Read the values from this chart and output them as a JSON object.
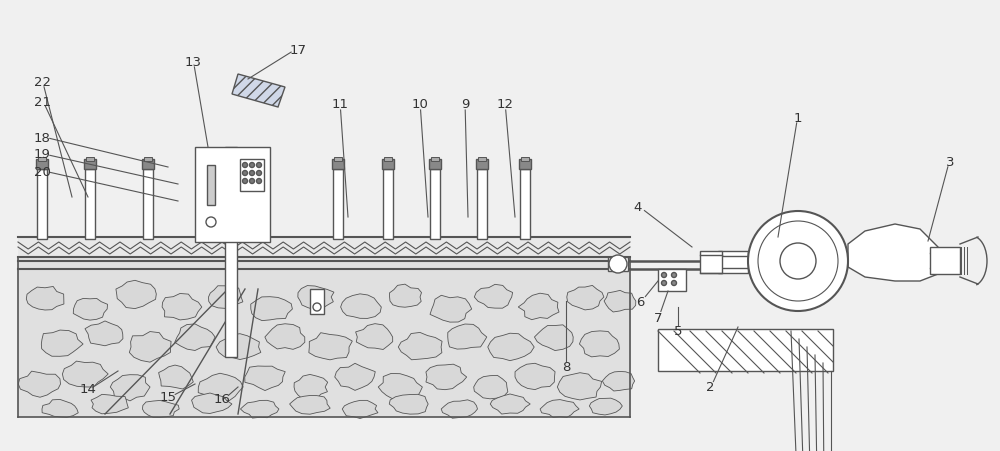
{
  "bg_color": "#f0f0f0",
  "line_color": "#555555",
  "lw": 1.0,
  "fig_w": 10.0,
  "fig_h": 4.52,
  "dpi": 100,
  "labels": [
    [
      "22",
      42,
      82
    ],
    [
      "21",
      42,
      102
    ],
    [
      "18",
      42,
      138
    ],
    [
      "19",
      42,
      155
    ],
    [
      "20",
      42,
      172
    ],
    [
      "13",
      193,
      62
    ],
    [
      "17",
      298,
      50
    ],
    [
      "11",
      340,
      105
    ],
    [
      "10",
      420,
      105
    ],
    [
      "9",
      465,
      105
    ],
    [
      "12",
      505,
      105
    ],
    [
      "4",
      638,
      208
    ],
    [
      "1",
      798,
      118
    ],
    [
      "3",
      950,
      162
    ],
    [
      "6",
      640,
      302
    ],
    [
      "7",
      658,
      318
    ],
    [
      "5",
      678,
      332
    ],
    [
      "8",
      566,
      368
    ],
    [
      "2",
      710,
      388
    ],
    [
      "14",
      88,
      390
    ],
    [
      "15",
      168,
      398
    ],
    [
      "16",
      222,
      400
    ]
  ],
  "leader_lines": [
    [
      "22",
      42,
      82,
      72,
      198
    ],
    [
      "21",
      42,
      102,
      88,
      198
    ],
    [
      "18",
      42,
      138,
      168,
      168
    ],
    [
      "19",
      42,
      155,
      178,
      185
    ],
    [
      "20",
      42,
      172,
      178,
      202
    ],
    [
      "13",
      193,
      62,
      208,
      148
    ],
    [
      "17",
      298,
      50,
      248,
      80
    ],
    [
      "11",
      340,
      105,
      348,
      218
    ],
    [
      "10",
      420,
      105,
      428,
      218
    ],
    [
      "9",
      465,
      105,
      468,
      218
    ],
    [
      "12",
      505,
      105,
      515,
      218
    ],
    [
      "4",
      638,
      208,
      692,
      248
    ],
    [
      "1",
      798,
      118,
      778,
      238
    ],
    [
      "3",
      950,
      162,
      928,
      242
    ],
    [
      "6",
      640,
      302,
      658,
      282
    ],
    [
      "7",
      658,
      318,
      668,
      292
    ],
    [
      "5",
      678,
      332,
      678,
      308
    ],
    [
      "8",
      566,
      368,
      566,
      302
    ],
    [
      "2",
      710,
      388,
      738,
      328
    ],
    [
      "14",
      88,
      390,
      118,
      372
    ],
    [
      "15",
      168,
      398,
      195,
      385
    ],
    [
      "16",
      222,
      400,
      238,
      388
    ]
  ]
}
